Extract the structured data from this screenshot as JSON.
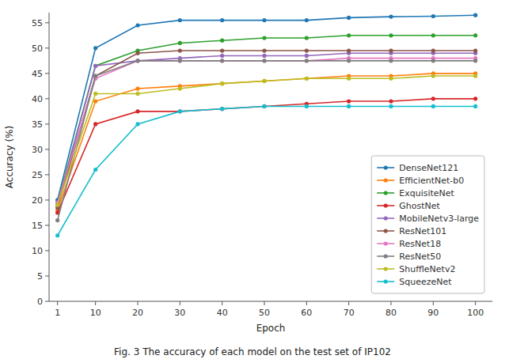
{
  "chart_data": {
    "type": "line",
    "caption": "Fig. 3 The accuracy of each model on the test set of IP102",
    "x_label": "Epoch",
    "y_label": "Accuracy (%)",
    "x": [
      1,
      10,
      20,
      30,
      40,
      50,
      60,
      70,
      80,
      90,
      100
    ],
    "series": [
      {
        "name": "DenseNet121",
        "color": "#1f77b4",
        "values": [
          20.0,
          50.0,
          54.5,
          55.5,
          55.5,
          55.5,
          55.5,
          56.0,
          56.2,
          56.3,
          56.5
        ]
      },
      {
        "name": "EfficientNet-b0",
        "color": "#ff7f0e",
        "values": [
          18.0,
          39.5,
          42.0,
          42.5,
          43.0,
          43.5,
          44.0,
          44.5,
          44.5,
          45.0,
          45.0
        ]
      },
      {
        "name": "ExquisiteNet",
        "color": "#2ca02c",
        "values": [
          19.5,
          46.5,
          49.5,
          51.0,
          51.5,
          52.0,
          52.0,
          52.5,
          52.5,
          52.5,
          52.5
        ]
      },
      {
        "name": "GhostNet",
        "color": "#d62728",
        "values": [
          17.5,
          35.0,
          37.5,
          37.5,
          38.0,
          38.5,
          39.0,
          39.5,
          39.5,
          40.0,
          40.0
        ]
      },
      {
        "name": "MobileNetv3-large",
        "color": "#9467bd",
        "values": [
          19.0,
          46.5,
          47.5,
          48.0,
          48.5,
          48.5,
          48.5,
          49.0,
          49.0,
          49.0,
          49.0
        ]
      },
      {
        "name": "ResNet101",
        "color": "#8c564b",
        "values": [
          18.5,
          44.5,
          49.0,
          49.5,
          49.5,
          49.5,
          49.5,
          49.5,
          49.5,
          49.5,
          49.5
        ]
      },
      {
        "name": "ResNet18",
        "color": "#e377c2",
        "values": [
          19.5,
          44.0,
          47.5,
          47.5,
          47.5,
          47.5,
          47.5,
          48.0,
          48.0,
          48.0,
          48.0
        ]
      },
      {
        "name": "ResNet50",
        "color": "#7f7f7f",
        "values": [
          16.0,
          44.5,
          47.5,
          47.5,
          47.5,
          47.5,
          47.5,
          47.5,
          47.5,
          47.5,
          47.5
        ]
      },
      {
        "name": "ShuffleNetv2",
        "color": "#bcbd22",
        "values": [
          19.0,
          41.0,
          41.0,
          42.0,
          43.0,
          43.5,
          44.0,
          44.0,
          44.0,
          44.5,
          44.5
        ]
      },
      {
        "name": "SqueezeNet",
        "color": "#17becf",
        "values": [
          13.0,
          26.0,
          35.0,
          37.5,
          38.0,
          38.5,
          38.5,
          38.5,
          38.5,
          38.5,
          38.5
        ]
      }
    ],
    "xlim": [
      -1,
      104
    ],
    "xticks": [
      1,
      10,
      20,
      30,
      40,
      50,
      60,
      70,
      80,
      90,
      100
    ],
    "ylim": [
      0,
      57
    ],
    "yticks": [
      0,
      5,
      10,
      15,
      20,
      25,
      30,
      35,
      40,
      45,
      50,
      55
    ],
    "marker": "circle",
    "legend": "lower right",
    "grid": false
  }
}
